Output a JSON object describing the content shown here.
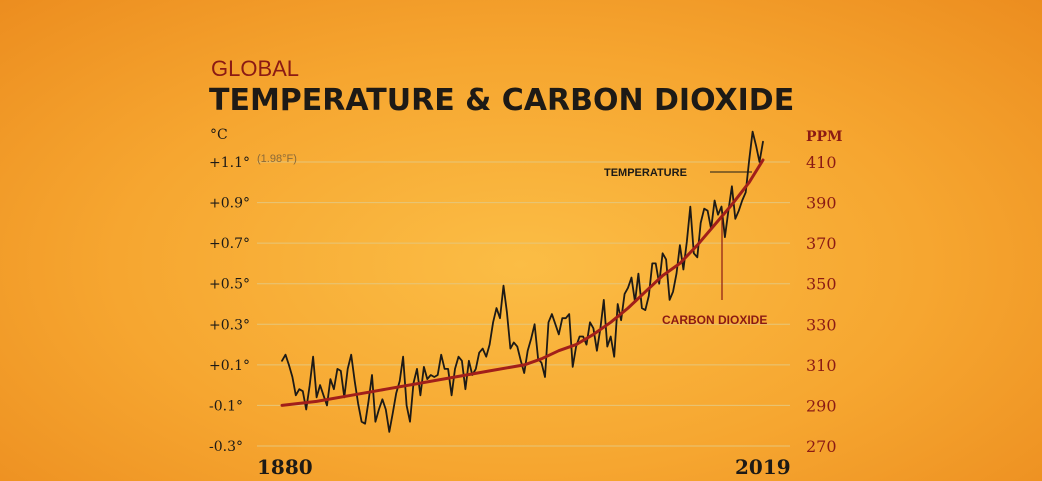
{
  "title": {
    "line1": "GLOBAL",
    "line2": "TEMPERATURE & CARBON DIOXIDE"
  },
  "colors": {
    "temperature": "#1d1a16",
    "co2": "#a11f1a",
    "background": "#f6a630",
    "grid": "#e6c67a"
  },
  "chart_data": {
    "type": "line",
    "title": "GLOBAL TEMPERATURE & CARBON DIOXIDE",
    "x_range": [
      1880,
      2019
    ],
    "x_tick_labels": [
      "1880",
      "2019"
    ],
    "y_left": {
      "unit": "°C",
      "range": [
        -0.3,
        1.1
      ],
      "tick_labels": [
        "+1.1°",
        "+0.9°",
        "+0.7°",
        "+0.5°",
        "+0.3°",
        "+0.1°",
        "-0.1°",
        "-0.3°"
      ],
      "tick_values": [
        1.1,
        0.9,
        0.7,
        0.5,
        0.3,
        0.1,
        -0.1,
        -0.3
      ],
      "top_note": "(1.98°F)"
    },
    "y_right": {
      "unit": "PPM",
      "range": [
        270,
        410
      ],
      "tick_labels": [
        "410",
        "390",
        "370",
        "350",
        "330",
        "310",
        "290",
        "270"
      ],
      "tick_values": [
        410,
        390,
        370,
        350,
        330,
        310,
        290,
        270
      ]
    },
    "grid": true,
    "annotations": {
      "temperature": "TEMPERATURE",
      "co2": "CARBON DIOXIDE"
    },
    "series": [
      {
        "name": "TEMPERATURE",
        "axis": "left",
        "x": [
          1880,
          1881,
          1882,
          1883,
          1884,
          1885,
          1886,
          1887,
          1888,
          1889,
          1890,
          1891,
          1892,
          1893,
          1894,
          1895,
          1896,
          1897,
          1898,
          1899,
          1900,
          1901,
          1902,
          1903,
          1904,
          1905,
          1906,
          1907,
          1908,
          1909,
          1910,
          1911,
          1912,
          1913,
          1914,
          1915,
          1916,
          1917,
          1918,
          1919,
          1920,
          1921,
          1922,
          1923,
          1924,
          1925,
          1926,
          1927,
          1928,
          1929,
          1930,
          1931,
          1932,
          1933,
          1934,
          1935,
          1936,
          1937,
          1938,
          1939,
          1940,
          1941,
          1942,
          1943,
          1944,
          1945,
          1946,
          1947,
          1948,
          1949,
          1950,
          1951,
          1952,
          1953,
          1954,
          1955,
          1956,
          1957,
          1958,
          1959,
          1960,
          1961,
          1962,
          1963,
          1964,
          1965,
          1966,
          1967,
          1968,
          1969,
          1970,
          1971,
          1972,
          1973,
          1974,
          1975,
          1976,
          1977,
          1978,
          1979,
          1980,
          1981,
          1982,
          1983,
          1984,
          1985,
          1986,
          1987,
          1988,
          1989,
          1990,
          1991,
          1992,
          1993,
          1994,
          1995,
          1996,
          1997,
          1998,
          1999,
          2000,
          2001,
          2002,
          2003,
          2004,
          2005,
          2006,
          2007,
          2008,
          2009,
          2010,
          2011,
          2012,
          2013,
          2014,
          2015,
          2016,
          2017,
          2018,
          2019
        ],
        "y": [
          0.12,
          0.15,
          0.1,
          0.04,
          -0.05,
          -0.02,
          -0.03,
          -0.12,
          0.0,
          0.14,
          -0.06,
          0.0,
          -0.05,
          -0.1,
          0.03,
          -0.02,
          0.08,
          0.07,
          -0.06,
          0.08,
          0.15,
          0.02,
          -0.09,
          -0.18,
          -0.19,
          -0.08,
          0.05,
          -0.18,
          -0.12,
          -0.07,
          -0.12,
          -0.23,
          -0.14,
          -0.04,
          0.02,
          0.14,
          -0.1,
          -0.18,
          0.01,
          0.08,
          -0.05,
          0.09,
          0.03,
          0.05,
          0.04,
          0.05,
          0.15,
          0.08,
          0.08,
          -0.05,
          0.08,
          0.14,
          0.12,
          -0.02,
          0.12,
          0.05,
          0.08,
          0.16,
          0.18,
          0.14,
          0.2,
          0.31,
          0.38,
          0.33,
          0.49,
          0.36,
          0.18,
          0.21,
          0.19,
          0.12,
          0.06,
          0.17,
          0.23,
          0.3,
          0.13,
          0.11,
          0.04,
          0.31,
          0.35,
          0.3,
          0.25,
          0.33,
          0.33,
          0.35,
          0.09,
          0.19,
          0.24,
          0.24,
          0.2,
          0.31,
          0.28,
          0.17,
          0.28,
          0.42,
          0.19,
          0.24,
          0.14,
          0.4,
          0.32,
          0.45,
          0.48,
          0.53,
          0.41,
          0.55,
          0.38,
          0.37,
          0.44,
          0.6,
          0.6,
          0.5,
          0.65,
          0.62,
          0.42,
          0.46,
          0.55,
          0.69,
          0.57,
          0.71,
          0.88,
          0.65,
          0.63,
          0.8,
          0.87,
          0.86,
          0.77,
          0.91,
          0.84,
          0.88,
          0.73,
          0.86,
          0.98,
          0.82,
          0.86,
          0.91,
          0.95,
          1.11,
          1.25,
          1.18,
          1.1,
          1.2
        ]
      },
      {
        "name": "CARBON DIOXIDE",
        "axis": "right",
        "x": [
          1880,
          1890,
          1900,
          1910,
          1920,
          1930,
          1940,
          1950,
          1955,
          1960,
          1965,
          1970,
          1975,
          1980,
          1985,
          1990,
          1995,
          2000,
          2005,
          2010,
          2015,
          2019
        ],
        "y": [
          290,
          292,
          295,
          298,
          301,
          304,
          307,
          310,
          313,
          317,
          320,
          325,
          331,
          338,
          346,
          354,
          360,
          369,
          379,
          389,
          400,
          411
        ]
      }
    ]
  }
}
